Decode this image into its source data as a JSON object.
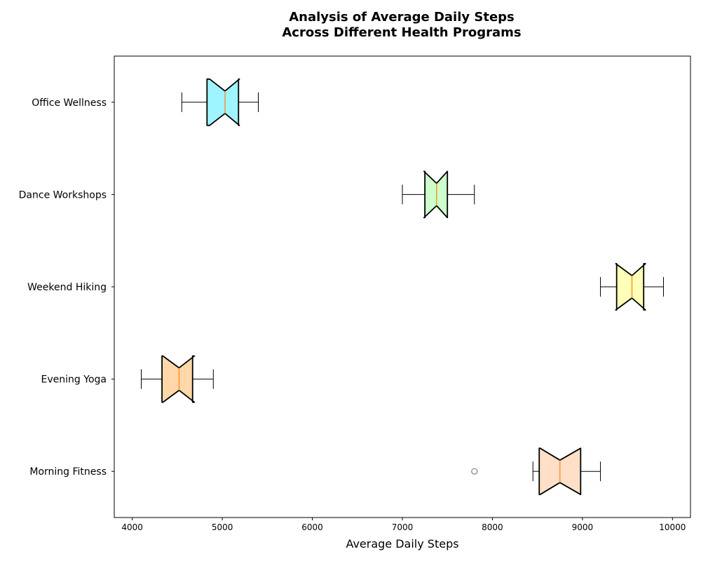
{
  "chart_data": {
    "type": "boxplot",
    "orientation": "horizontal",
    "notched": true,
    "title_line1": "Analysis of Average Daily Steps",
    "title_line2": "Across Different Health Programs",
    "xlabel": "Average Daily Steps",
    "ylabel": "",
    "xlim": [
      3800,
      10200
    ],
    "xticks": [
      4000,
      5000,
      6000,
      7000,
      8000,
      9000,
      10000
    ],
    "xtick_labels": [
      "4000",
      "5000",
      "6000",
      "7000",
      "8000",
      "9000",
      "10000"
    ],
    "grid": false,
    "median_color": "#ff7f0e",
    "outlier_color": "#808080",
    "categories": [
      "Office Wellness",
      "Dance Workshops",
      "Weekend Hiking",
      "Evening Yoga",
      "Morning Fitness"
    ],
    "boxes": [
      {
        "name": "Office Wellness",
        "whisker_low": 4550,
        "q1": 4830,
        "median": 5030,
        "q3": 5180,
        "whisker_high": 5400,
        "notch_low": 4860,
        "notch_high": 5190,
        "outliers": [],
        "color": "#a0f4ff"
      },
      {
        "name": "Dance Workshops",
        "whisker_low": 7000,
        "q1": 7250,
        "median": 7380,
        "q3": 7500,
        "whisker_high": 7800,
        "notch_low": 7240,
        "notch_high": 7500,
        "outliers": [],
        "color": "#ccffcc"
      },
      {
        "name": "Weekend Hiking",
        "whisker_low": 9200,
        "q1": 9380,
        "median": 9550,
        "q3": 9680,
        "whisker_high": 9900,
        "notch_low": 9370,
        "notch_high": 9700,
        "outliers": [],
        "color": "#ffffb8"
      },
      {
        "name": "Evening Yoga",
        "whisker_low": 4100,
        "q1": 4330,
        "median": 4520,
        "q3": 4670,
        "whisker_high": 4900,
        "notch_low": 4340,
        "notch_high": 4690,
        "outliers": [],
        "color": "#ffd7a8"
      },
      {
        "name": "Morning Fitness",
        "whisker_low": 8450,
        "q1": 8520,
        "median": 8750,
        "q3": 8980,
        "whisker_high": 9200,
        "notch_low": 8530,
        "notch_high": 8980,
        "outliers": [
          7800
        ],
        "color": "#ffdfc8"
      }
    ]
  }
}
